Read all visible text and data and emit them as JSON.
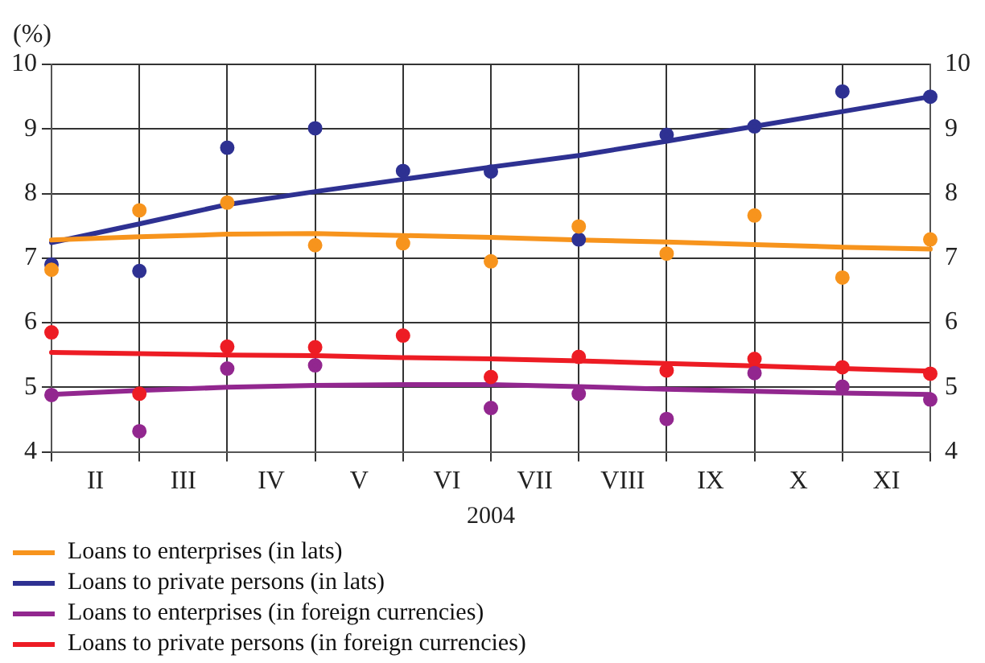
{
  "chart_data": {
    "type": "scatter",
    "ylabel": "(%)",
    "xlabel": "2004",
    "categories": [
      null,
      "II",
      null,
      "III",
      null,
      "IV",
      null,
      "V",
      null,
      "VI",
      null,
      "VII",
      null,
      "VIII",
      null,
      "IX",
      null,
      "X",
      null,
      "XI",
      null
    ],
    "ylim": [
      4,
      10
    ],
    "yticks": [
      4,
      5,
      6,
      7,
      8,
      9,
      10
    ],
    "y2lim": [
      4,
      10
    ],
    "y2ticks": [
      4,
      5,
      6,
      7,
      8,
      9,
      10
    ],
    "grid": true,
    "legend": "bottom",
    "series": [
      {
        "type": "scatter",
        "marker": "circle",
        "color": "#f7941d",
        "values": [
          6.82,
          null,
          7.74,
          null,
          7.86,
          null,
          7.2,
          null,
          7.23,
          null,
          6.95,
          null,
          7.49,
          null,
          7.07,
          null,
          7.66,
          null,
          6.7,
          null,
          7.29
        ]
      },
      {
        "type": "scatter",
        "marker": "circle",
        "color": "#2e3192",
        "values": [
          6.9,
          null,
          6.8,
          null,
          8.71,
          null,
          9.01,
          null,
          8.35,
          null,
          8.34,
          null,
          7.29,
          null,
          8.91,
          null,
          9.04,
          null,
          9.58,
          null,
          9.5
        ]
      },
      {
        "type": "scatter",
        "marker": "circle",
        "color": "#92278f",
        "values": [
          4.88,
          null,
          4.32,
          null,
          5.29,
          null,
          5.34,
          null,
          null,
          null,
          4.68,
          null,
          4.9,
          null,
          4.51,
          null,
          5.22,
          null,
          5.01,
          null,
          4.81
        ]
      },
      {
        "type": "scatter",
        "marker": "circle",
        "color": "#ed1c24",
        "values": [
          5.85,
          null,
          4.9,
          null,
          5.63,
          null,
          5.62,
          null,
          5.8,
          null,
          5.16,
          null,
          5.47,
          null,
          5.26,
          null,
          5.44,
          null,
          5.31,
          null,
          5.21
        ]
      },
      {
        "type": "line",
        "marker": "none",
        "name": "Loans to enterprises (in lats)",
        "color": "#f7941d",
        "values": [
          7.28,
          null,
          7.33,
          null,
          7.37,
          null,
          7.38,
          null,
          7.35,
          null,
          7.32,
          null,
          7.28,
          null,
          7.25,
          null,
          7.21,
          null,
          7.17,
          null,
          7.14
        ]
      },
      {
        "type": "line",
        "marker": "none",
        "name": "Loans to private persons (in lats)",
        "color": "#2e3192",
        "values": [
          7.24,
          null,
          7.53,
          null,
          7.83,
          null,
          8.03,
          null,
          8.22,
          null,
          8.41,
          null,
          8.59,
          null,
          8.81,
          null,
          9.04,
          null,
          9.27,
          null,
          9.5
        ]
      },
      {
        "type": "line",
        "marker": "none",
        "name": "Loans to enterprises (in foreign currencies)",
        "color": "#92278f",
        "values": [
          4.89,
          null,
          4.95,
          null,
          5.0,
          null,
          5.03,
          null,
          5.04,
          null,
          5.04,
          null,
          5.01,
          null,
          4.97,
          null,
          4.94,
          null,
          4.91,
          null,
          4.89
        ]
      },
      {
        "type": "line",
        "marker": "none",
        "name": "Loans to private persons (in foreign currencies)",
        "color": "#ed1c24",
        "values": [
          5.54,
          null,
          5.52,
          null,
          5.5,
          null,
          5.49,
          null,
          5.46,
          null,
          5.44,
          null,
          5.41,
          null,
          5.37,
          null,
          5.33,
          null,
          5.29,
          null,
          5.25
        ]
      }
    ]
  }
}
